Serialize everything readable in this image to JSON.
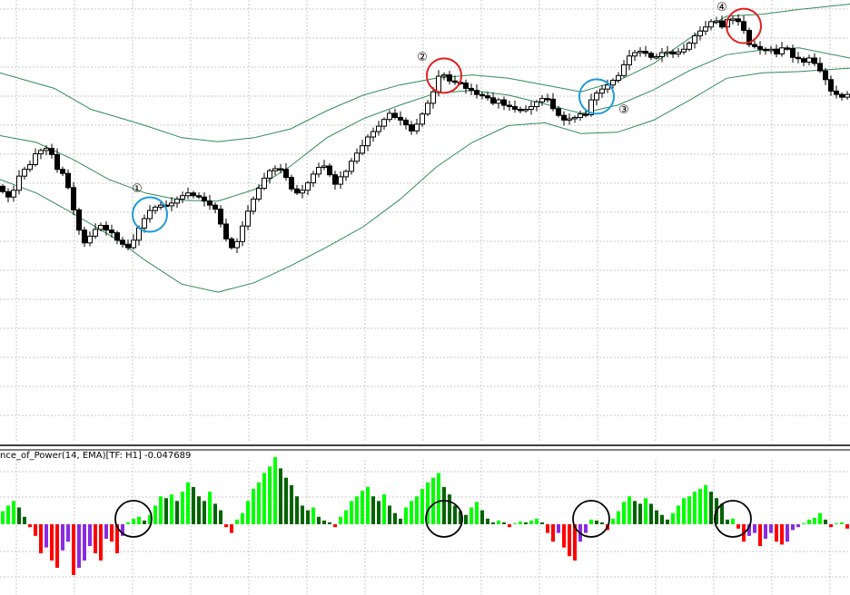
{
  "indicator": {
    "title": "nce_of_Power(14, EMA)[TF: H1] -0.047689"
  },
  "colors": {
    "bull_body": "#ffffff",
    "bear_body": "#000000",
    "band": "#2e8b57",
    "grid": "#c8c8c8",
    "hist_up_strong": "#00ff00",
    "hist_up_weak": "#006400",
    "hist_down_strong": "#ff0000",
    "hist_down_weak": "#8a2be2",
    "circle_buy": "#1e9bd7",
    "circle_sell": "#e02020",
    "circle_ind": "#000000"
  },
  "chart_data": [
    {
      "type": "candlestick",
      "price_points": [
        [
          0,
          380
        ],
        [
          6,
          372
        ],
        [
          12,
          364
        ],
        [
          18,
          374
        ],
        [
          24,
          395
        ],
        [
          30,
          405
        ],
        [
          36,
          412
        ],
        [
          42,
          428
        ],
        [
          48,
          433
        ],
        [
          54,
          436
        ],
        [
          60,
          427
        ],
        [
          66,
          405
        ],
        [
          72,
          399
        ],
        [
          78,
          378
        ],
        [
          84,
          345
        ],
        [
          90,
          315
        ],
        [
          96,
          296
        ],
        [
          102,
          306
        ],
        [
          108,
          316
        ],
        [
          114,
          322
        ],
        [
          120,
          315
        ],
        [
          126,
          311
        ],
        [
          132,
          300
        ],
        [
          138,
          294
        ],
        [
          144,
          289
        ],
        [
          150,
          300
        ],
        [
          156,
          318
        ],
        [
          162,
          332
        ],
        [
          168,
          344
        ],
        [
          174,
          349
        ],
        [
          180,
          352
        ],
        [
          186,
          351
        ],
        [
          192,
          355
        ],
        [
          198,
          361
        ],
        [
          204,
          366
        ],
        [
          210,
          370
        ],
        [
          216,
          366
        ],
        [
          222,
          364
        ],
        [
          228,
          358
        ],
        [
          234,
          352
        ],
        [
          240,
          346
        ],
        [
          246,
          324
        ],
        [
          252,
          302
        ],
        [
          258,
          289
        ],
        [
          264,
          298
        ],
        [
          270,
          321
        ],
        [
          276,
          343
        ],
        [
          282,
          361
        ],
        [
          288,
          377
        ],
        [
          294,
          392
        ],
        [
          300,
          403
        ],
        [
          306,
          406
        ],
        [
          312,
          405
        ],
        [
          318,
          393
        ],
        [
          324,
          376
        ],
        [
          330,
          370
        ],
        [
          336,
          374
        ],
        [
          342,
          385
        ],
        [
          348,
          398
        ],
        [
          354,
          408
        ],
        [
          360,
          410
        ],
        [
          366,
          397
        ],
        [
          372,
          383
        ],
        [
          378,
          394
        ],
        [
          384,
          402
        ],
        [
          390,
          417
        ],
        [
          396,
          429
        ],
        [
          402,
          440
        ],
        [
          408,
          453
        ],
        [
          414,
          461
        ],
        [
          420,
          469
        ],
        [
          426,
          479
        ],
        [
          432,
          488
        ],
        [
          438,
          482
        ],
        [
          444,
          478
        ],
        [
          450,
          471
        ],
        [
          456,
          462
        ],
        [
          462,
          472
        ],
        [
          468,
          487
        ],
        [
          474,
          503
        ],
        [
          480,
          520
        ],
        [
          486,
          543
        ],
        [
          492,
          545
        ],
        [
          498,
          536
        ],
        [
          504,
          534
        ],
        [
          510,
          533
        ],
        [
          516,
          525
        ],
        [
          522,
          522
        ],
        [
          528,
          516
        ],
        [
          534,
          514
        ],
        [
          540,
          511
        ],
        [
          546,
          503
        ],
        [
          552,
          508
        ],
        [
          558,
          500
        ],
        [
          564,
          498
        ],
        [
          570,
          494
        ],
        [
          576,
          492
        ],
        [
          582,
          494
        ],
        [
          588,
          498
        ],
        [
          594,
          505
        ],
        [
          600,
          510
        ],
        [
          606,
          509
        ],
        [
          612,
          495
        ],
        [
          618,
          485
        ],
        [
          624,
          478
        ],
        [
          630,
          480
        ],
        [
          636,
          482
        ],
        [
          642,
          487
        ],
        [
          648,
          486
        ],
        [
          654,
          508
        ],
        [
          660,
          518
        ],
        [
          666,
          524
        ],
        [
          672,
          530
        ],
        [
          678,
          537
        ],
        [
          684,
          544
        ],
        [
          690,
          560
        ],
        [
          696,
          573
        ],
        [
          702,
          578
        ],
        [
          708,
          580
        ],
        [
          714,
          577
        ],
        [
          720,
          571
        ],
        [
          726,
          572
        ],
        [
          732,
          578
        ],
        [
          738,
          579
        ],
        [
          744,
          576
        ],
        [
          750,
          579
        ],
        [
          756,
          583
        ],
        [
          762,
          592
        ],
        [
          768,
          603
        ],
        [
          774,
          610
        ],
        [
          780,
          616
        ],
        [
          786,
          624
        ],
        [
          792,
          625
        ],
        [
          798,
          616
        ],
        [
          804,
          627
        ],
        [
          810,
          628
        ],
        [
          816,
          624
        ],
        [
          822,
          611
        ],
        [
          828,
          590
        ],
        [
          834,
          587
        ],
        [
          840,
          583
        ],
        [
          846,
          582
        ],
        [
          852,
          583
        ],
        [
          858,
          576
        ],
        [
          864,
          585
        ],
        [
          870,
          584
        ],
        [
          876,
          571
        ],
        [
          882,
          569
        ],
        [
          888,
          564
        ],
        [
          894,
          570
        ],
        [
          900,
          562
        ],
        [
          906,
          551
        ],
        [
          912,
          538
        ],
        [
          918,
          521
        ],
        [
          924,
          516
        ],
        [
          930,
          512
        ],
        [
          936,
          516
        ]
      ],
      "upper_band": [
        [
          0,
          548
        ],
        [
          60,
          525
        ],
        [
          100,
          494
        ],
        [
          130,
          482
        ],
        [
          160,
          470
        ],
        [
          200,
          452
        ],
        [
          240,
          446
        ],
        [
          280,
          452
        ],
        [
          320,
          465
        ],
        [
          360,
          492
        ],
        [
          400,
          515
        ],
        [
          440,
          530
        ],
        [
          480,
          540
        ],
        [
          520,
          545
        ],
        [
          560,
          540
        ],
        [
          600,
          530
        ],
        [
          640,
          520
        ],
        [
          680,
          536
        ],
        [
          720,
          562
        ],
        [
          760,
          600
        ],
        [
          800,
          632
        ],
        [
          840,
          635
        ],
        [
          880,
          642
        ],
        [
          936,
          650
        ]
      ],
      "middle_band": [
        [
          0,
          455
        ],
        [
          40,
          445
        ],
        [
          80,
          420
        ],
        [
          120,
          390
        ],
        [
          160,
          370
        ],
        [
          200,
          359
        ],
        [
          240,
          358
        ],
        [
          280,
          375
        ],
        [
          320,
          410
        ],
        [
          360,
          452
        ],
        [
          400,
          480
        ],
        [
          440,
          500
        ],
        [
          480,
          518
        ],
        [
          520,
          522
        ],
        [
          560,
          515
        ],
        [
          600,
          502
        ],
        [
          640,
          488
        ],
        [
          680,
          500
        ],
        [
          720,
          523
        ],
        [
          760,
          552
        ],
        [
          800,
          575
        ],
        [
          840,
          582
        ],
        [
          880,
          585
        ],
        [
          936,
          570
        ]
      ],
      "lower_band": [
        [
          0,
          390
        ],
        [
          40,
          370
        ],
        [
          80,
          340
        ],
        [
          110,
          316
        ],
        [
          130,
          300
        ],
        [
          160,
          270
        ],
        [
          200,
          235
        ],
        [
          240,
          223
        ],
        [
          280,
          237
        ],
        [
          320,
          262
        ],
        [
          360,
          290
        ],
        [
          400,
          320
        ],
        [
          440,
          360
        ],
        [
          480,
          408
        ],
        [
          520,
          445
        ],
        [
          560,
          470
        ],
        [
          600,
          474
        ],
        [
          640,
          458
        ],
        [
          680,
          460
        ],
        [
          720,
          478
        ],
        [
          760,
          508
        ],
        [
          800,
          540
        ],
        [
          840,
          548
        ],
        [
          880,
          550
        ],
        [
          936,
          555
        ]
      ],
      "ylim": [
        0,
        656
      ],
      "markers": [
        {
          "label": "①",
          "kind": "buy",
          "index": 27
        },
        {
          "label": "②",
          "kind": "sell",
          "index": 81
        },
        {
          "label": "③",
          "kind": "buy",
          "index": 109
        },
        {
          "label": "④",
          "kind": "sell",
          "index": 136
        }
      ]
    },
    {
      "type": "bar",
      "name": "Balance of Power",
      "values": [
        0.14,
        0.2,
        0.25,
        0.18,
        0.08,
        -0.02,
        -0.08,
        -0.2,
        -0.16,
        -0.25,
        -0.3,
        -0.18,
        -0.12,
        -0.35,
        -0.3,
        -0.25,
        -0.15,
        -0.2,
        -0.25,
        -0.1,
        -0.12,
        -0.2,
        -0.08,
        0.02,
        0.06,
        0.08,
        0.04,
        0.1,
        0.2,
        0.3,
        0.28,
        0.32,
        0.25,
        0.35,
        0.45,
        0.4,
        0.3,
        0.25,
        0.35,
        0.22,
        0.15,
        -0.02,
        -0.06,
        0.05,
        0.12,
        0.25,
        0.38,
        0.45,
        0.55,
        0.62,
        0.72,
        0.6,
        0.5,
        0.42,
        0.3,
        0.2,
        0.15,
        0.18,
        0.08,
        0.04,
        0.02,
        -0.02,
        0.08,
        0.15,
        0.25,
        0.3,
        0.36,
        0.4,
        0.3,
        0.25,
        0.32,
        0.2,
        0.12,
        0.06,
        0.18,
        0.25,
        0.3,
        0.38,
        0.45,
        0.5,
        0.55,
        0.4,
        0.32,
        0.2,
        0.14,
        0.1,
        0.18,
        0.24,
        0.15,
        0.06,
        0.02,
        0.04,
        0.02,
        -0.02,
        0.01,
        0.03,
        0.02,
        0.04,
        0.06,
        0.02,
        -0.06,
        -0.12,
        -0.06,
        -0.16,
        -0.22,
        -0.25,
        -0.12,
        -0.06,
        0.05,
        0.04,
        0.02,
        -0.04,
        0.06,
        0.14,
        0.24,
        0.3,
        0.25,
        0.22,
        0.28,
        0.22,
        0.15,
        0.1,
        0.05,
        0.12,
        0.2,
        0.28,
        0.3,
        0.35,
        0.38,
        0.42,
        0.35,
        0.28,
        0.22,
        0.05,
        0.06,
        -0.03,
        -0.12,
        -0.08,
        -0.06,
        -0.15,
        -0.1,
        -0.06,
        -0.12,
        -0.14,
        -0.12,
        -0.04,
        -0.02,
        0.01,
        0.05,
        0.07,
        0.12,
        0.05,
        -0.02,
        0.01,
        0.02,
        -0.03
      ],
      "ylim": [
        -0.4,
        0.75
      ],
      "markers": [
        {
          "index": 24,
          "kind": "ind"
        },
        {
          "index": 81,
          "kind": "ind"
        },
        {
          "index": 108,
          "kind": "ind"
        },
        {
          "index": 134,
          "kind": "ind"
        }
      ]
    }
  ]
}
